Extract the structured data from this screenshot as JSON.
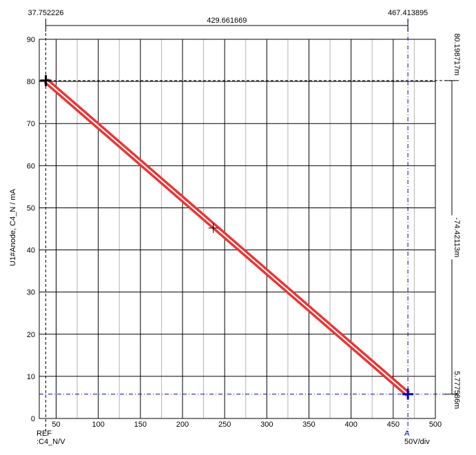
{
  "chart_data": {
    "type": "line",
    "xlabel": "",
    "ylabel": "U1#Anode, C4_N / mA",
    "xlim": [
      30,
      500
    ],
    "ylim": [
      0,
      90
    ],
    "x_ticks": [
      50,
      100,
      150,
      200,
      250,
      300,
      350,
      400,
      450,
      500
    ],
    "y_ticks": [
      0,
      10,
      20,
      30,
      40,
      50,
      60,
      70,
      80,
      90
    ],
    "x_tick_labels": [
      "50",
      "100",
      "150",
      "200",
      "250",
      "300",
      "350",
      "400",
      "450",
      "500"
    ],
    "y_tick_labels": [
      "0",
      "10",
      "20",
      "30",
      "40",
      "50",
      "60",
      "70",
      "80",
      "90"
    ],
    "x_minor_step": 25,
    "y_minor_step": 10,
    "grid": true,
    "series": [
      {
        "x": [
          37.752226,
          467.413895
        ],
        "y": [
          80.198717,
          5.777586
        ],
        "color": "#ee3333"
      }
    ],
    "cursors": {
      "ref": {
        "x": 37.752226,
        "y": 80.198717,
        "color": "#000000"
      },
      "a": {
        "x": 467.413895,
        "y": 5.777586,
        "color": "#0000cc"
      },
      "midpoint": {
        "x": 236.5,
        "y": 45.2
      }
    },
    "measurements": {
      "ref_x_label": "37.752226",
      "a_x_label": "467.413895",
      "dx_label": "429.661669",
      "ref_y_label": "80.198717m",
      "a_y_label": "5.777586m",
      "dy_label": "-74.42113m"
    },
    "footer": {
      "ref_label": "REF",
      "ref_signal": ":C4_N/V",
      "a_label": "A",
      "scale": "50V/div"
    }
  }
}
